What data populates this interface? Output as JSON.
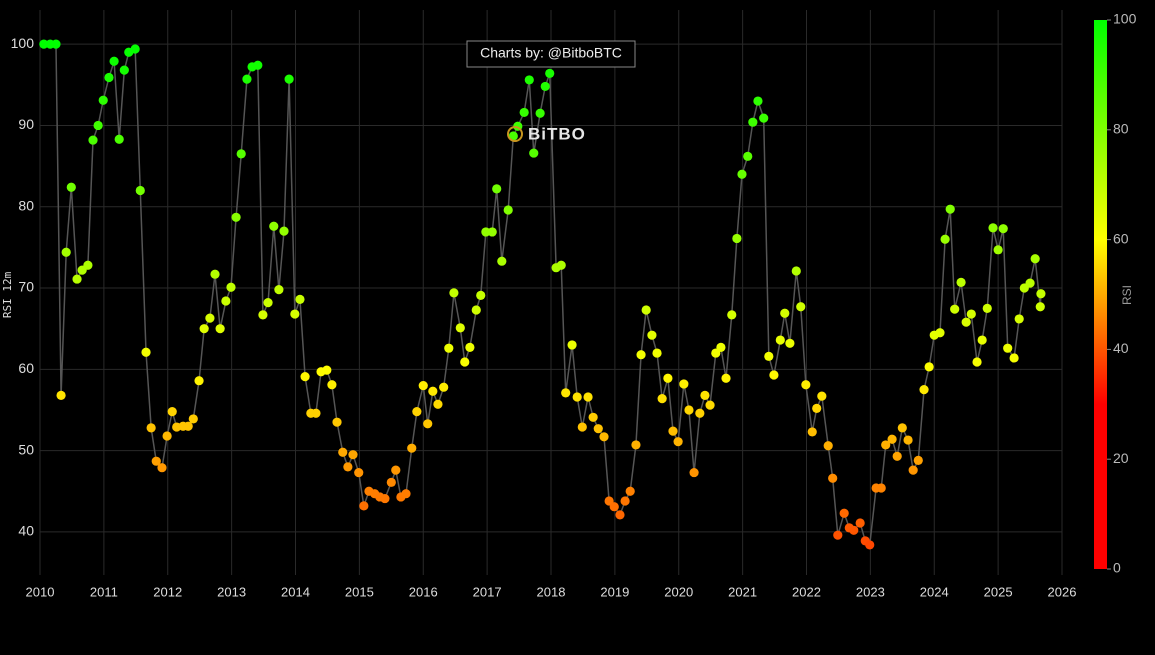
{
  "chart_data": {
    "type": "line",
    "y_label": "RSI 12m",
    "annotation": "Charts by: @BitboBTC",
    "logo": "BiTBO",
    "xlim": [
      2010,
      2026
    ],
    "xticks": [
      2010,
      2011,
      2012,
      2013,
      2014,
      2015,
      2016,
      2017,
      2018,
      2019,
      2020,
      2021,
      2022,
      2023,
      2024,
      2025,
      2026
    ],
    "ylim": [
      34.7,
      104.2
    ],
    "yticks": [
      40,
      50,
      60,
      70,
      80,
      90,
      100
    ],
    "grid": true,
    "line_color": "#555555",
    "colorscale": [
      [
        0,
        "#ff0000"
      ],
      [
        0.3,
        "#ff0000"
      ],
      [
        0.6,
        "#ffff00"
      ],
      [
        1,
        "#00ff00"
      ]
    ],
    "colorbar": {
      "title": "RSI",
      "lim": [
        0,
        100
      ],
      "ticks": [
        0,
        20,
        40,
        60,
        80,
        100
      ]
    },
    "x": [
      2010.06,
      2010.16,
      2010.25,
      2010.33,
      2010.41,
      2010.49,
      2010.58,
      2010.66,
      2010.75,
      2010.83,
      2010.91,
      2010.99,
      2011.08,
      2011.16,
      2011.24,
      2011.32,
      2011.39,
      2011.49,
      2011.57,
      2011.66,
      2011.74,
      2011.82,
      2011.91,
      2011.99,
      2012.07,
      2012.14,
      2012.24,
      2012.32,
      2012.4,
      2012.49,
      2012.57,
      2012.66,
      2012.74,
      2012.82,
      2012.91,
      2012.99,
      2013.07,
      2013.15,
      2013.24,
      2013.32,
      2013.41,
      2013.49,
      2013.57,
      2013.66,
      2013.74,
      2013.82,
      2013.9,
      2013.99,
      2014.07,
      2014.15,
      2014.24,
      2014.32,
      2014.4,
      2014.49,
      2014.57,
      2014.65,
      2014.74,
      2014.82,
      2014.9,
      2014.99,
      2015.07,
      2015.15,
      2015.24,
      2015.32,
      2015.4,
      2015.5,
      2015.57,
      2015.65,
      2015.73,
      2015.82,
      2015.9,
      2016.0,
      2016.07,
      2016.15,
      2016.23,
      2016.32,
      2016.4,
      2016.48,
      2016.58,
      2016.65,
      2016.73,
      2016.83,
      2016.9,
      2016.98,
      2017.08,
      2017.15,
      2017.23,
      2017.33,
      2017.41,
      2017.48,
      2017.58,
      2017.66,
      2017.73,
      2017.83,
      2017.91,
      2017.98,
      2018.08,
      2018.16,
      2018.23,
      2018.33,
      2018.41,
      2018.49,
      2018.58,
      2018.66,
      2018.74,
      2018.83,
      2018.91,
      2018.99,
      2019.08,
      2019.16,
      2019.24,
      2019.33,
      2019.41,
      2019.49,
      2019.58,
      2019.66,
      2019.74,
      2019.83,
      2019.91,
      2019.99,
      2020.08,
      2020.16,
      2020.24,
      2020.33,
      2020.41,
      2020.49,
      2020.58,
      2020.66,
      2020.74,
      2020.83,
      2020.91,
      2020.99,
      2021.08,
      2021.16,
      2021.24,
      2021.33,
      2021.41,
      2021.49,
      2021.59,
      2021.66,
      2021.74,
      2021.84,
      2021.91,
      2021.99,
      2022.09,
      2022.16,
      2022.24,
      2022.34,
      2022.41,
      2022.49,
      2022.59,
      2022.67,
      2022.74,
      2022.84,
      2022.92,
      2022.99,
      2023.09,
      2023.17,
      2023.24,
      2023.34,
      2023.42,
      2023.5,
      2023.59,
      2023.67,
      2023.75,
      2023.84,
      2023.92,
      2024.0,
      2024.09,
      2024.17,
      2024.25,
      2024.32,
      2024.42,
      2024.5,
      2024.58,
      2024.67,
      2024.75,
      2024.83,
      2024.92,
      2025.0,
      2025.08,
      2025.15,
      2025.25,
      2025.33,
      2025.41,
      2025.5,
      2025.58,
      2025.66,
      2025.67
    ],
    "values": [
      100,
      100,
      100,
      56.8,
      74.4,
      82.4,
      71.1,
      72.2,
      72.8,
      88.2,
      90.0,
      93.1,
      95.9,
      97.9,
      88.3,
      96.8,
      99.0,
      99.4,
      82.0,
      62.1,
      52.8,
      48.7,
      47.9,
      51.8,
      54.8,
      52.9,
      53.0,
      53.0,
      53.9,
      58.6,
      65.0,
      66.3,
      71.7,
      65.0,
      68.4,
      70.1,
      78.7,
      86.5,
      95.7,
      97.2,
      97.4,
      66.7,
      68.2,
      77.6,
      69.8,
      77.0,
      95.7,
      66.8,
      68.6,
      59.1,
      54.6,
      54.6,
      59.7,
      59.9,
      58.1,
      53.5,
      49.8,
      48.0,
      49.5,
      47.3,
      43.2,
      45.0,
      44.7,
      44.3,
      44.1,
      46.1,
      47.6,
      44.3,
      44.7,
      50.3,
      54.8,
      58.0,
      53.3,
      57.3,
      55.7,
      57.8,
      62.6,
      69.4,
      65.1,
      60.9,
      62.7,
      67.3,
      69.1,
      76.9,
      76.9,
      82.2,
      73.3,
      79.6,
      88.7,
      89.9,
      91.6,
      95.6,
      86.6,
      91.5,
      94.8,
      96.4,
      72.5,
      72.8,
      57.1,
      63.0,
      56.6,
      52.9,
      56.6,
      54.1,
      52.7,
      51.7,
      43.8,
      43.1,
      42.1,
      43.8,
      45.0,
      50.7,
      61.8,
      67.3,
      64.2,
      62.0,
      56.4,
      58.9,
      52.4,
      51.1,
      58.2,
      55.0,
      47.3,
      54.6,
      56.8,
      55.6,
      62.0,
      62.7,
      58.9,
      66.7,
      76.1,
      84.0,
      86.2,
      90.4,
      93.0,
      90.9,
      61.6,
      59.3,
      63.6,
      66.9,
      63.2,
      72.1,
      67.7,
      58.1,
      52.3,
      55.2,
      56.7,
      50.6,
      46.6,
      39.6,
      42.3,
      40.5,
      40.2,
      41.1,
      38.9,
      38.4,
      45.4,
      45.4,
      50.7,
      51.4,
      49.3,
      52.8,
      51.3,
      47.6,
      48.8,
      57.5,
      60.3,
      64.2,
      64.5,
      76.0,
      79.7,
      67.4,
      70.7,
      65.8,
      66.8,
      60.9,
      63.6,
      67.5,
      77.4,
      74.7,
      77.3,
      62.6,
      61.4,
      66.2,
      70.0,
      70.6,
      73.6,
      67.7,
      69.3
    ]
  }
}
